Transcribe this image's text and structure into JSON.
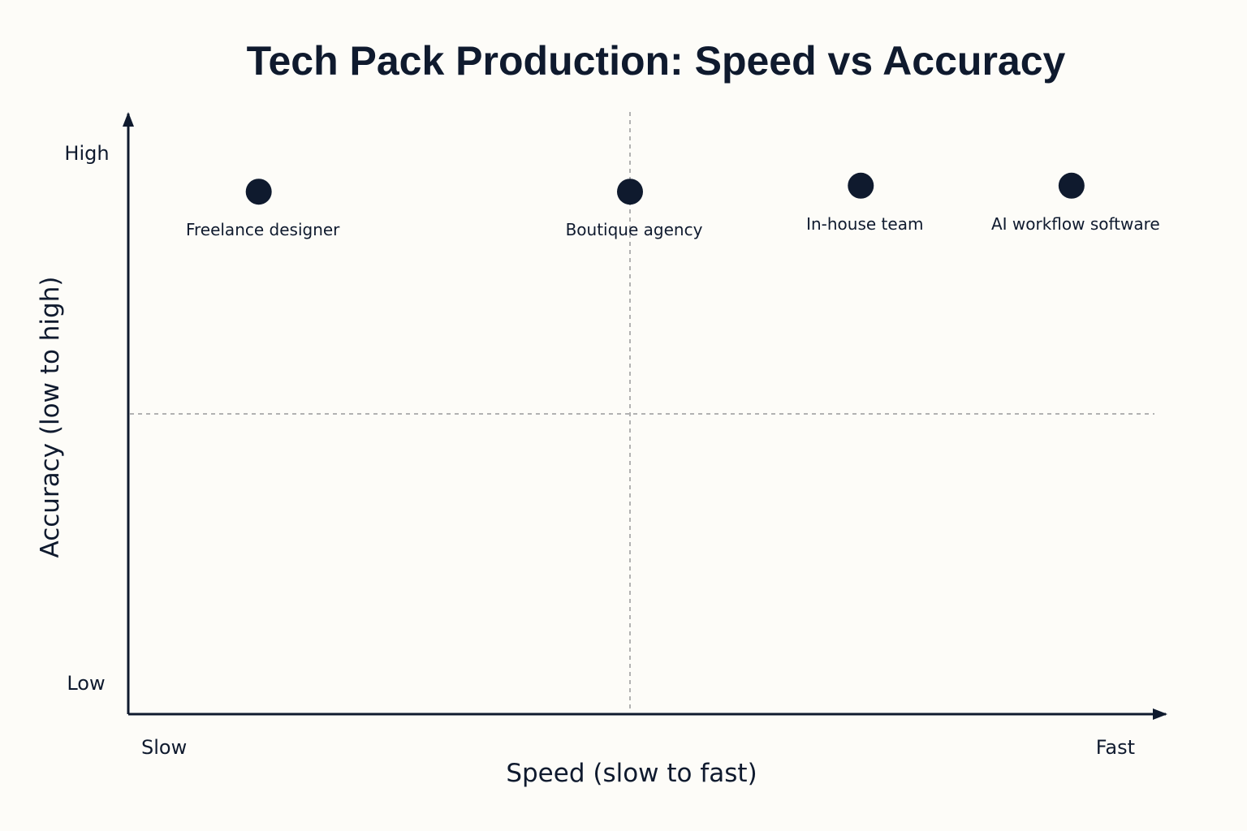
{
  "chart_data": {
    "type": "scatter",
    "title": "Tech Pack Production: Speed vs Accuracy",
    "xlabel": "Speed (slow to fast)",
    "ylabel": "Accuracy (low to high)",
    "x_tick_labels": {
      "low": "Slow",
      "high": "Fast"
    },
    "y_tick_labels": {
      "low": "Low",
      "high": "High"
    },
    "xlim": [
      0,
      1
    ],
    "ylim": [
      0,
      1
    ],
    "quadrant_dividers": {
      "x": 0.5,
      "y": 0.5
    },
    "grid": false,
    "points": [
      {
        "label": "Freelance designer",
        "x": 0.13,
        "y": 0.87
      },
      {
        "label": "Boutique agency",
        "x": 0.5,
        "y": 0.87
      },
      {
        "label": "In-house team",
        "x": 0.73,
        "y": 0.88
      },
      {
        "label": "AI workflow software",
        "x": 0.94,
        "y": 0.88
      }
    ],
    "colors": {
      "background": "#fdfcf8",
      "ink": "#0f1a2e",
      "divider": "#9a9a9a"
    }
  }
}
